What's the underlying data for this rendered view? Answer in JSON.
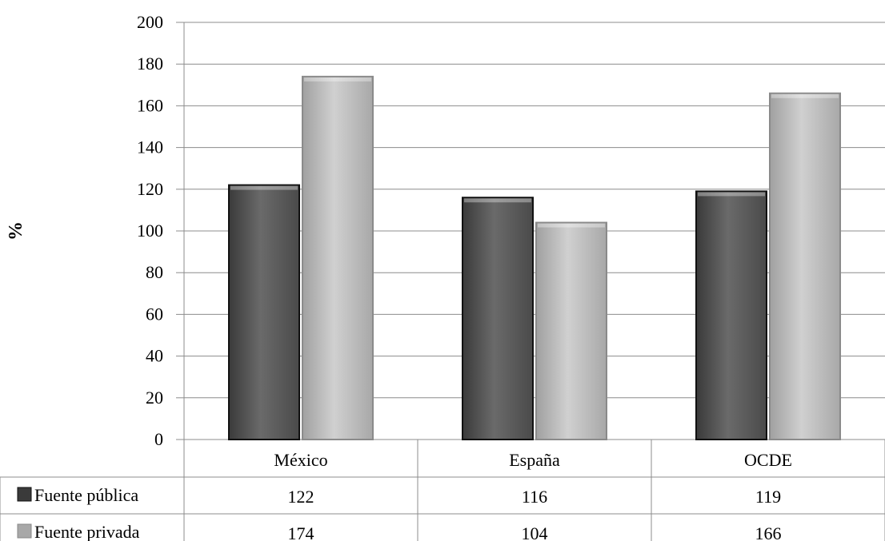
{
  "chart_data": {
    "type": "bar",
    "title": "",
    "xlabel": "",
    "ylabel": "%",
    "ylim": [
      0,
      200
    ],
    "yticks": [
      0,
      20,
      40,
      60,
      80,
      100,
      120,
      140,
      160,
      180,
      200
    ],
    "grid": true,
    "legend": "data-table-left",
    "categories": [
      "México",
      "España",
      "OCDE"
    ],
    "series": [
      {
        "name": "Fuente pública",
        "values": [
          122,
          116,
          119
        ],
        "color": "#595959"
      },
      {
        "name": "Fuente privada",
        "values": [
          174,
          104,
          166
        ],
        "color": "#b8b8b8"
      }
    ],
    "table": {
      "rows": [
        {
          "label": "Fuente pública",
          "values": [
            "122",
            "116",
            "119"
          ]
        },
        {
          "label": "Fuente privada",
          "values": [
            "174",
            "104",
            "166"
          ]
        }
      ]
    }
  }
}
